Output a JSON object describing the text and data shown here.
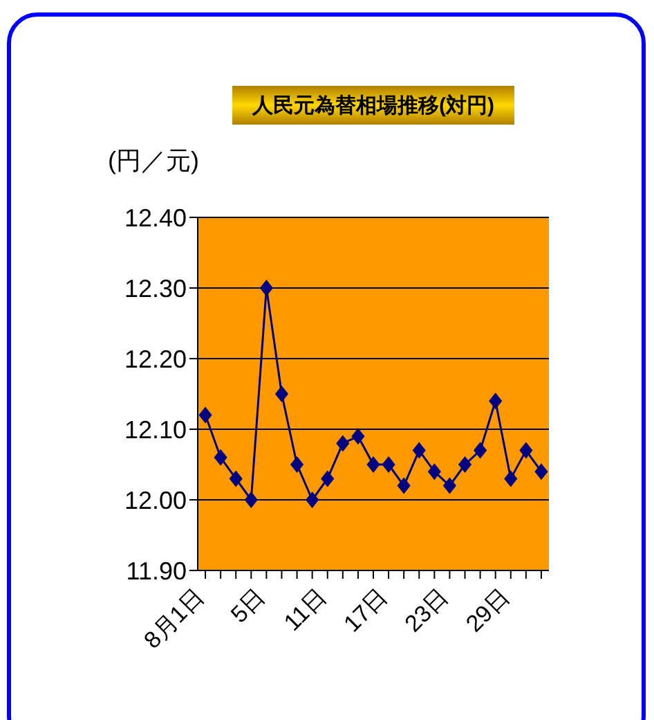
{
  "chart_data": {
    "type": "line",
    "title": "人民元為替相場推移(対円)",
    "ylabel": "(円／元)",
    "categories": [
      "8月1日",
      null,
      null,
      null,
      "5日",
      null,
      null,
      null,
      "11日",
      null,
      null,
      null,
      "17日",
      null,
      null,
      null,
      "23日",
      null,
      null,
      null,
      "29日",
      null,
      null
    ],
    "series": [
      {
        "color": "#000080",
        "values": [
          12.12,
          12.06,
          12.03,
          12.0,
          12.3,
          12.15,
          12.05,
          12.0,
          12.03,
          12.08,
          12.09,
          12.05,
          12.05,
          12.02,
          12.07,
          12.04,
          12.02,
          12.05,
          12.07,
          12.14,
          12.03,
          12.07,
          12.04
        ]
      }
    ],
    "ylim": [
      11.9,
      12.4
    ],
    "yticks": [
      {
        "value": 11.9,
        "label": "11.90"
      },
      {
        "value": 12.0,
        "label": "12.00"
      },
      {
        "value": 12.1,
        "label": "12.10"
      },
      {
        "value": 12.2,
        "label": "12.20"
      },
      {
        "value": 12.3,
        "label": "12.30"
      },
      {
        "value": 12.4,
        "label": "12.40"
      }
    ],
    "grid": "y",
    "marker": "diamond",
    "line_style": "solid"
  }
}
